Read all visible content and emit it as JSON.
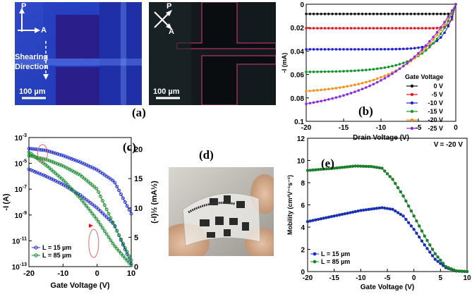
{
  "figure": {
    "panel_labels": {
      "a": "(a)",
      "b": "(b)",
      "c": "(c)",
      "d": "(d)",
      "e": "(e)"
    },
    "photo1": {
      "p": "P",
      "a": "A",
      "shear1": "Shearing",
      "shear2": "Direction",
      "scale": "100 µm"
    },
    "photo2": {
      "p": "P",
      "a": "A",
      "scale": "100 µm"
    }
  },
  "colors": {
    "black": "#111111",
    "red": "#e8141c",
    "blue": "#1f1fd6",
    "green": "#12962e",
    "orange": "#f7921e",
    "purple": "#8a2be2",
    "c_blue": "#1a2ad8",
    "c_green": "#148a2a"
  },
  "chart_data": [
    {
      "id": "b",
      "type": "line",
      "title": "",
      "xlabel": "Drain Voltage (V)",
      "ylabel": "-I_D (mA)",
      "xlim": [
        -20,
        0
      ],
      "ylim": [
        0.1,
        0
      ],
      "y_inverted": true,
      "xticks": [
        -20,
        -15,
        -10,
        -5,
        0
      ],
      "yticks": [
        0,
        0.02,
        0.04,
        0.06,
        0.08,
        0.1
      ],
      "xtick_labels": [
        "-20",
        "-15",
        "-10",
        "-5",
        "0"
      ],
      "ytick_labels": [
        "0",
        "0.02",
        "0.04",
        "0.06",
        "0.08",
        "0.1"
      ],
      "legend_title": "Gate Voltage",
      "series": [
        {
          "name": "0 V",
          "color": "#111111",
          "sat": 0.0083,
          "vt": 0.2
        },
        {
          "name": "-5 V",
          "color": "#e8141c",
          "sat": 0.0205,
          "vt": 0.5
        },
        {
          "name": "-10 V",
          "color": "#1f1fd6",
          "sat": 0.0385,
          "vt": 1.5
        },
        {
          "name": "-15 V",
          "color": "#12962e",
          "sat": 0.058,
          "vt": 3.5
        },
        {
          "name": "-20 V",
          "color": "#f7921e",
          "sat": 0.077,
          "vt": 6
        },
        {
          "name": "-25 V",
          "color": "#8a2be2",
          "sat": 0.094,
          "vt": 8.5
        }
      ]
    },
    {
      "id": "c",
      "type": "line",
      "xlabel": "Gate Voltage (V)",
      "ylabel_left": "-I_D (A)",
      "ylabel_right": "(-I_D)^1/2 (mA^1/2)",
      "xlim": [
        -20,
        10
      ],
      "ylim_left_log10": [
        -13,
        -3
      ],
      "ylim_right": [
        0,
        22
      ],
      "xticks": [
        -20,
        -10,
        0,
        10
      ],
      "xtick_labels": [
        "-20",
        "-10",
        "0",
        "10"
      ],
      "yticks_left": [
        "10^-13",
        "10^-11",
        "10^-9",
        "10^-7",
        "10^-5",
        "10^-3"
      ],
      "yticks_right": [
        0,
        5,
        10,
        15,
        20
      ],
      "ytick_labels_right": [
        "0",
        "5",
        "10",
        "15",
        "20"
      ],
      "legend": [
        "L = 15 µm",
        "L = 85 µm"
      ],
      "series": [
        {
          "name": "L = 15 µm",
          "log_current": [
            [
              -20,
              -3.85
            ],
            [
              -15,
              -4.0
            ],
            [
              -10,
              -4.4
            ],
            [
              -5,
              -4.9
            ],
            [
              0,
              -5.5
            ],
            [
              5,
              -6.4
            ],
            [
              10,
              -8.9
            ]
          ],
          "sqrt_current": [
            [
              -20,
              16.6
            ],
            [
              -15,
              15.4
            ],
            [
              -10,
              14.0
            ],
            [
              -5,
              12.2
            ],
            [
              0,
              10.0
            ],
            [
              5,
              7.2
            ],
            [
              10,
              0.5
            ]
          ]
        },
        {
          "name": "L = 85 µm",
          "log_current": [
            [
              -20,
              -4.4
            ],
            [
              -15,
              -4.7
            ],
            [
              -10,
              -5.2
            ],
            [
              -5,
              -5.9
            ],
            [
              0,
              -7.0
            ],
            [
              5,
              -9.8
            ],
            [
              10,
              -12.5
            ]
          ],
          "sqrt_current": [
            [
              -20,
              19.5
            ],
            [
              -15,
              17.3
            ],
            [
              -10,
              14.8
            ],
            [
              -5,
              11.7
            ],
            [
              0,
              8.0
            ],
            [
              5,
              3.6
            ],
            [
              10,
              0.2
            ]
          ]
        }
      ]
    },
    {
      "id": "e",
      "type": "line",
      "xlabel": "Gate Voltage (V)",
      "ylabel": "Mobility (cm²V⁻¹s⁻¹)",
      "annotation": "V_D = -20 V",
      "xlim": [
        -20,
        10
      ],
      "ylim": [
        0,
        12
      ],
      "xticks": [
        -20,
        -15,
        -10,
        -5,
        0,
        5,
        10
      ],
      "xtick_labels": [
        "-20",
        "-15",
        "-10",
        "-5",
        "0",
        "5",
        "10"
      ],
      "yticks": [
        0,
        2,
        4,
        6,
        8,
        10,
        12
      ],
      "ytick_labels": [
        "0",
        "2",
        "4",
        "6",
        "8",
        "10",
        "12"
      ],
      "legend": [
        "L = 15 µm",
        "L = 85 µm"
      ],
      "series": [
        {
          "name": "L = 15 µm",
          "points": [
            [
              -20,
              4.5
            ],
            [
              -15,
              5.0
            ],
            [
              -10,
              5.5
            ],
            [
              -6,
              5.75
            ],
            [
              -4,
              5.6
            ],
            [
              -2,
              5.0
            ],
            [
              0,
              3.8
            ],
            [
              2,
              2.4
            ],
            [
              4,
              1.1
            ],
            [
              6,
              0.35
            ],
            [
              8,
              0.05
            ],
            [
              10,
              0.0
            ]
          ]
        },
        {
          "name": "L = 85 µm",
          "points": [
            [
              -20,
              9.1
            ],
            [
              -15,
              9.3
            ],
            [
              -11,
              9.5
            ],
            [
              -8,
              9.45
            ],
            [
              -6,
              9.3
            ],
            [
              -4,
              8.3
            ],
            [
              -2,
              6.8
            ],
            [
              0,
              5.0
            ],
            [
              2,
              3.2
            ],
            [
              4,
              1.6
            ],
            [
              6,
              0.45
            ],
            [
              8,
              0.05
            ],
            [
              10,
              0.0
            ]
          ]
        }
      ]
    }
  ]
}
